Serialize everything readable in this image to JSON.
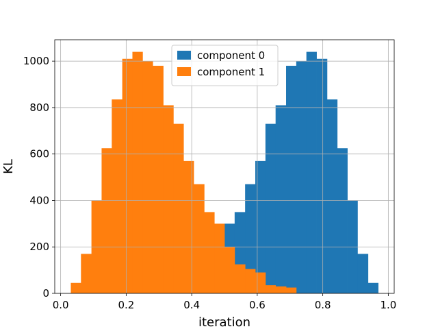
{
  "chart_data": {
    "type": "bar",
    "subtype": "overlapping-histogram",
    "title": "",
    "xlabel": "iteration",
    "ylabel": "KL",
    "xlim": [
      -0.018,
      1.018
    ],
    "ylim": [
      0,
      1092
    ],
    "grid": true,
    "legend_position": "top-center",
    "x_ticks": [
      {
        "value": 0.0,
        "label": "0.0"
      },
      {
        "value": 0.2,
        "label": "0.2"
      },
      {
        "value": 0.4,
        "label": "0.4"
      },
      {
        "value": 0.6,
        "label": "0.6"
      },
      {
        "value": 0.8,
        "label": "0.8"
      },
      {
        "value": 1.0,
        "label": "1.0"
      }
    ],
    "y_ticks": [
      {
        "value": 0,
        "label": "0"
      },
      {
        "value": 200,
        "label": "200"
      },
      {
        "value": 400,
        "label": "400"
      },
      {
        "value": 600,
        "label": "600"
      },
      {
        "value": 800,
        "label": "800"
      },
      {
        "value": 1000,
        "label": "1000"
      }
    ],
    "series": [
      {
        "name": "component 0",
        "color": "#1f77b4",
        "bins": [
          {
            "x0": 0.0,
            "x1": 0.032,
            "y": 0
          },
          {
            "x0": 0.032,
            "x1": 0.063,
            "y": 0
          },
          {
            "x0": 0.063,
            "x1": 0.094,
            "y": 0
          },
          {
            "x0": 0.094,
            "x1": 0.125,
            "y": 0
          },
          {
            "x0": 0.125,
            "x1": 0.156,
            "y": 0
          },
          {
            "x0": 0.156,
            "x1": 0.188,
            "y": 0
          },
          {
            "x0": 0.188,
            "x1": 0.219,
            "y": 0
          },
          {
            "x0": 0.219,
            "x1": 0.25,
            "y": 0
          },
          {
            "x0": 0.25,
            "x1": 0.281,
            "y": 0
          },
          {
            "x0": 0.281,
            "x1": 0.313,
            "y": 0
          },
          {
            "x0": 0.313,
            "x1": 0.344,
            "y": 0
          },
          {
            "x0": 0.344,
            "x1": 0.375,
            "y": 0
          },
          {
            "x0": 0.375,
            "x1": 0.406,
            "y": 0
          },
          {
            "x0": 0.406,
            "x1": 0.438,
            "y": 0
          },
          {
            "x0": 0.438,
            "x1": 0.469,
            "y": 0
          },
          {
            "x0": 0.469,
            "x1": 0.5,
            "y": 0
          },
          {
            "x0": 0.5,
            "x1": 0.531,
            "y": 300
          },
          {
            "x0": 0.531,
            "x1": 0.563,
            "y": 350
          },
          {
            "x0": 0.563,
            "x1": 0.594,
            "y": 470
          },
          {
            "x0": 0.594,
            "x1": 0.625,
            "y": 570
          },
          {
            "x0": 0.625,
            "x1": 0.656,
            "y": 730
          },
          {
            "x0": 0.656,
            "x1": 0.688,
            "y": 810
          },
          {
            "x0": 0.688,
            "x1": 0.719,
            "y": 980
          },
          {
            "x0": 0.719,
            "x1": 0.75,
            "y": 1000
          },
          {
            "x0": 0.75,
            "x1": 0.781,
            "y": 1040
          },
          {
            "x0": 0.781,
            "x1": 0.813,
            "y": 1010
          },
          {
            "x0": 0.813,
            "x1": 0.844,
            "y": 835
          },
          {
            "x0": 0.844,
            "x1": 0.875,
            "y": 625
          },
          {
            "x0": 0.875,
            "x1": 0.906,
            "y": 400
          },
          {
            "x0": 0.906,
            "x1": 0.938,
            "y": 170
          },
          {
            "x0": 0.938,
            "x1": 0.969,
            "y": 45
          }
        ]
      },
      {
        "name": "component 1",
        "color": "#ff7f0e",
        "bins": [
          {
            "x0": 0.031,
            "x1": 0.062,
            "y": 45
          },
          {
            "x0": 0.062,
            "x1": 0.094,
            "y": 170
          },
          {
            "x0": 0.094,
            "x1": 0.125,
            "y": 400
          },
          {
            "x0": 0.125,
            "x1": 0.156,
            "y": 625
          },
          {
            "x0": 0.156,
            "x1": 0.188,
            "y": 835
          },
          {
            "x0": 0.188,
            "x1": 0.219,
            "y": 1010
          },
          {
            "x0": 0.219,
            "x1": 0.25,
            "y": 1040
          },
          {
            "x0": 0.25,
            "x1": 0.281,
            "y": 1000
          },
          {
            "x0": 0.281,
            "x1": 0.313,
            "y": 980
          },
          {
            "x0": 0.313,
            "x1": 0.344,
            "y": 810
          },
          {
            "x0": 0.344,
            "x1": 0.375,
            "y": 730
          },
          {
            "x0": 0.375,
            "x1": 0.406,
            "y": 570
          },
          {
            "x0": 0.406,
            "x1": 0.438,
            "y": 470
          },
          {
            "x0": 0.438,
            "x1": 0.469,
            "y": 350
          },
          {
            "x0": 0.469,
            "x1": 0.5,
            "y": 300
          },
          {
            "x0": 0.5,
            "x1": 0.531,
            "y": 200
          },
          {
            "x0": 0.531,
            "x1": 0.563,
            "y": 125
          },
          {
            "x0": 0.563,
            "x1": 0.594,
            "y": 105
          },
          {
            "x0": 0.594,
            "x1": 0.625,
            "y": 90
          },
          {
            "x0": 0.625,
            "x1": 0.656,
            "y": 35
          },
          {
            "x0": 0.656,
            "x1": 0.688,
            "y": 30
          },
          {
            "x0": 0.688,
            "x1": 0.719,
            "y": 25
          },
          {
            "x0": 0.719,
            "x1": 0.75,
            "y": 0
          },
          {
            "x0": 0.75,
            "x1": 0.781,
            "y": 0
          },
          {
            "x0": 0.781,
            "x1": 0.813,
            "y": 0
          },
          {
            "x0": 0.813,
            "x1": 0.844,
            "y": 0
          },
          {
            "x0": 0.844,
            "x1": 0.875,
            "y": 0
          },
          {
            "x0": 0.875,
            "x1": 0.906,
            "y": 0
          },
          {
            "x0": 0.906,
            "x1": 0.938,
            "y": 0
          },
          {
            "x0": 0.938,
            "x1": 0.969,
            "y": 0
          }
        ]
      }
    ]
  }
}
